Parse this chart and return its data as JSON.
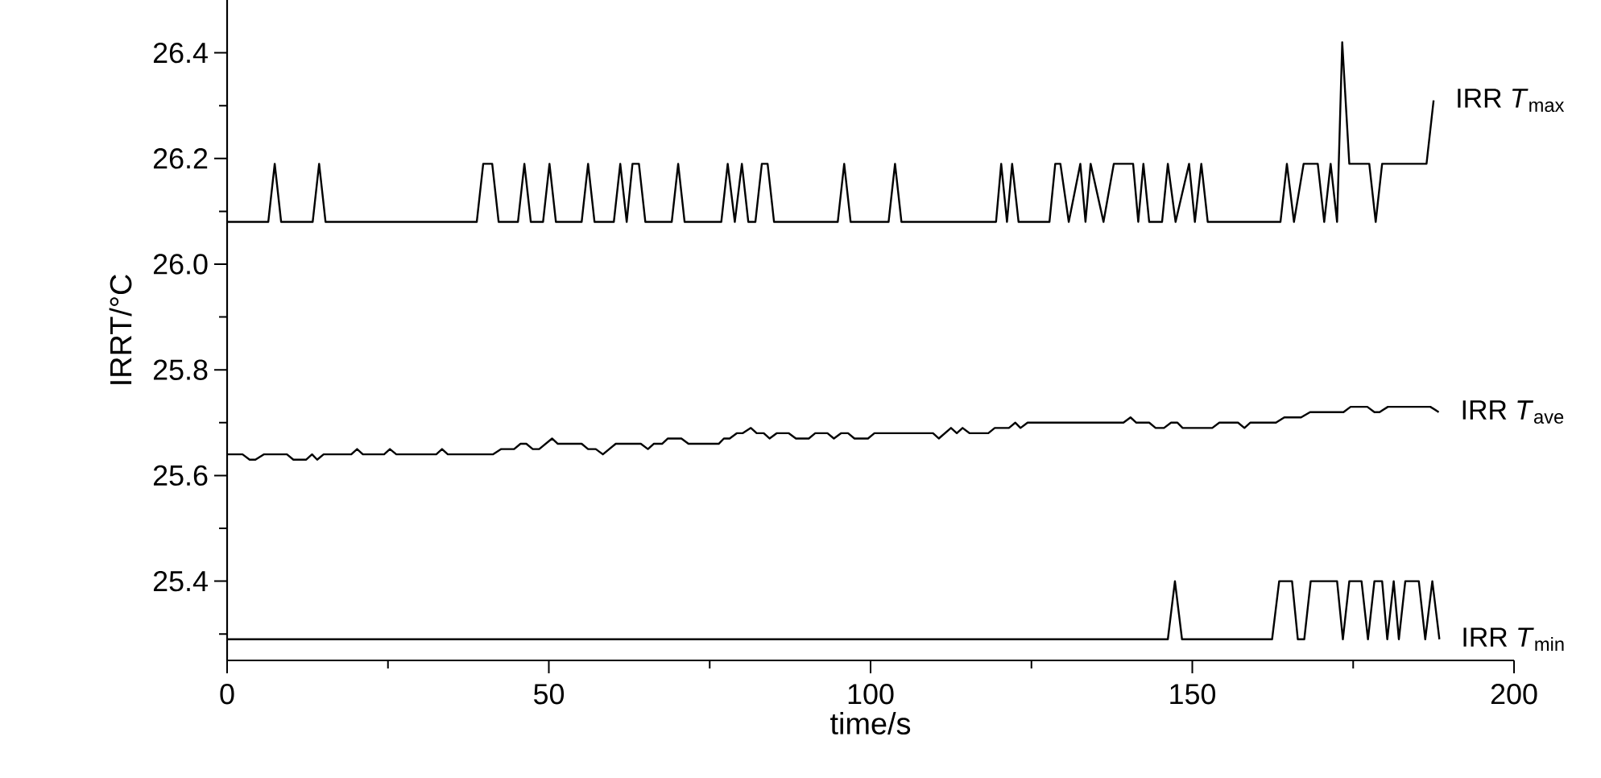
{
  "chart_data": {
    "type": "line",
    "xlabel": "time/s",
    "ylabel": "IRRT/°C",
    "xlim": [
      0,
      200
    ],
    "ylim": [
      25.25,
      26.5
    ],
    "xticks": [
      0,
      {
        "value": 25,
        "label": null
      },
      50,
      {
        "value": 75,
        "label": null
      },
      100,
      {
        "value": 125,
        "label": null
      },
      150,
      {
        "value": 175,
        "label": null
      },
      200
    ],
    "yticks": [
      {
        "value": 25.3,
        "label": null
      },
      25.4,
      {
        "value": 25.5,
        "label": null
      },
      25.6,
      {
        "value": 25.7,
        "label": null
      },
      25.8,
      {
        "value": 25.9,
        "label": null
      },
      {
        "value": 26.0,
        "label": "26.0"
      },
      {
        "value": 26.1,
        "label": null
      },
      26.2,
      {
        "value": 26.3,
        "label": null
      },
      26.4
    ],
    "marker": "none",
    "line_style": "solid",
    "series": [
      {
        "name": "IRR *T*$_{max}$",
        "color": "#000000",
        "x": [
          0,
          6.4,
          7.4,
          8.4,
          13.3,
          14.3,
          15.3,
          38.8,
          39.8,
          41.2,
          42.2,
          45.2,
          46.2,
          47.2,
          49.1,
          50.1,
          51.1,
          55.1,
          56.1,
          57.1,
          60.1,
          61.1,
          62.1,
          63.0,
          64.0,
          65.0,
          69.1,
          70.1,
          71.1,
          76.8,
          77.8,
          78.9,
          80.0,
          81.0,
          82.1,
          83.1,
          84.0,
          85.0,
          94.9,
          95.9,
          96.9,
          102.8,
          103.8,
          104.8,
          119.5,
          120.3,
          121.2,
          122.0,
          123.0,
          127.8,
          128.7,
          129.5,
          130.8,
          132.6,
          133.4,
          134.2,
          136.2,
          137.8,
          140.8,
          141.6,
          142.4,
          143.3,
          145.3,
          146.2,
          147.4,
          149.5,
          150.4,
          151.4,
          152.4,
          163.7,
          164.7,
          165.8,
          167.3,
          169.5,
          170.5,
          171.5,
          172.5,
          173.3,
          174.4,
          177.5,
          178.5,
          179.5,
          186.4,
          187.5
        ],
        "values": [
          26.08,
          26.08,
          26.19,
          26.08,
          26.08,
          26.19,
          26.08,
          26.08,
          26.19,
          26.19,
          26.08,
          26.08,
          26.19,
          26.08,
          26.08,
          26.19,
          26.08,
          26.08,
          26.19,
          26.08,
          26.08,
          26.19,
          26.08,
          26.19,
          26.19,
          26.08,
          26.08,
          26.19,
          26.08,
          26.08,
          26.19,
          26.08,
          26.19,
          26.08,
          26.08,
          26.19,
          26.19,
          26.08,
          26.08,
          26.19,
          26.08,
          26.08,
          26.19,
          26.08,
          26.08,
          26.19,
          26.08,
          26.19,
          26.08,
          26.08,
          26.19,
          26.19,
          26.08,
          26.19,
          26.08,
          26.19,
          26.08,
          26.19,
          26.19,
          26.08,
          26.19,
          26.08,
          26.08,
          26.19,
          26.08,
          26.19,
          26.08,
          26.19,
          26.08,
          26.08,
          26.19,
          26.08,
          26.19,
          26.19,
          26.08,
          26.19,
          26.08,
          26.42,
          26.19,
          26.19,
          26.08,
          26.19,
          26.19,
          26.31
        ]
      },
      {
        "name": "IRR *T*$_{ave}$",
        "color": "#000000",
        "x": [
          0,
          2.4,
          3.5,
          4.4,
          5.7,
          9.3,
          10.3,
          12.3,
          13.2,
          14.0,
          15.0,
          19.3,
          20.2,
          21.1,
          24.4,
          25.3,
          26.3,
          32.5,
          33.4,
          34.3,
          41.3,
          42.6,
          44.6,
          45.6,
          46.5,
          47.5,
          48.5,
          50.5,
          51.4,
          55.1,
          56.1,
          57.3,
          58.4,
          60.4,
          64.3,
          65.4,
          66.3,
          67.6,
          68.5,
          70.6,
          71.7,
          76.4,
          77.2,
          78.1,
          79.2,
          80.1,
          81.4,
          82.3,
          83.4,
          84.3,
          85.4,
          87.3,
          88.4,
          90.4,
          91.4,
          93.3,
          94.3,
          95.4,
          96.5,
          97.5,
          99.6,
          100.6,
          109.7,
          110.6,
          112.5,
          113.4,
          114.3,
          115.4,
          118.3,
          119.3,
          121.5,
          122.5,
          123.3,
          124.4,
          139.3,
          140.4,
          141.3,
          143.3,
          144.3,
          145.6,
          146.7,
          147.7,
          148.5,
          153.1,
          154.2,
          157.1,
          158.1,
          159.0,
          163.0,
          164.3,
          166.9,
          168.3,
          173.5,
          174.6,
          177.2,
          178.3,
          179.1,
          180.4,
          187.0,
          188.3
        ],
        "values": [
          25.64,
          25.64,
          25.63,
          25.63,
          25.64,
          25.64,
          25.63,
          25.63,
          25.64,
          25.63,
          25.64,
          25.64,
          25.65,
          25.64,
          25.64,
          25.65,
          25.64,
          25.64,
          25.65,
          25.64,
          25.64,
          25.65,
          25.65,
          25.66,
          25.66,
          25.65,
          25.65,
          25.67,
          25.66,
          25.66,
          25.65,
          25.65,
          25.64,
          25.66,
          25.66,
          25.65,
          25.66,
          25.66,
          25.67,
          25.67,
          25.66,
          25.66,
          25.67,
          25.67,
          25.68,
          25.68,
          25.69,
          25.68,
          25.68,
          25.67,
          25.68,
          25.68,
          25.67,
          25.67,
          25.68,
          25.68,
          25.67,
          25.68,
          25.68,
          25.67,
          25.67,
          25.68,
          25.68,
          25.67,
          25.69,
          25.68,
          25.69,
          25.68,
          25.68,
          25.69,
          25.69,
          25.7,
          25.69,
          25.7,
          25.7,
          25.71,
          25.7,
          25.7,
          25.69,
          25.69,
          25.7,
          25.7,
          25.69,
          25.69,
          25.7,
          25.7,
          25.69,
          25.7,
          25.7,
          25.71,
          25.71,
          25.72,
          25.72,
          25.73,
          25.73,
          25.72,
          25.72,
          25.73,
          25.73,
          25.72
        ]
      },
      {
        "name": "IRR *T*$_{min}$",
        "color": "#000000",
        "x": [
          0,
          146.2,
          147.3,
          148.4,
          162.4,
          163.5,
          165.5,
          166.4,
          167.4,
          168.4,
          172.5,
          173.4,
          174.4,
          176.3,
          177.3,
          178.3,
          179.5,
          180.3,
          181.3,
          182.1,
          183.1,
          185.2,
          186.2,
          187.3,
          188.4
        ],
        "values": [
          25.29,
          25.29,
          25.4,
          25.29,
          25.29,
          25.4,
          25.4,
          25.29,
          25.29,
          25.4,
          25.4,
          25.29,
          25.4,
          25.4,
          25.29,
          25.4,
          25.4,
          25.29,
          25.4,
          25.29,
          25.4,
          25.4,
          25.29,
          25.4,
          25.29
        ]
      }
    ]
  }
}
